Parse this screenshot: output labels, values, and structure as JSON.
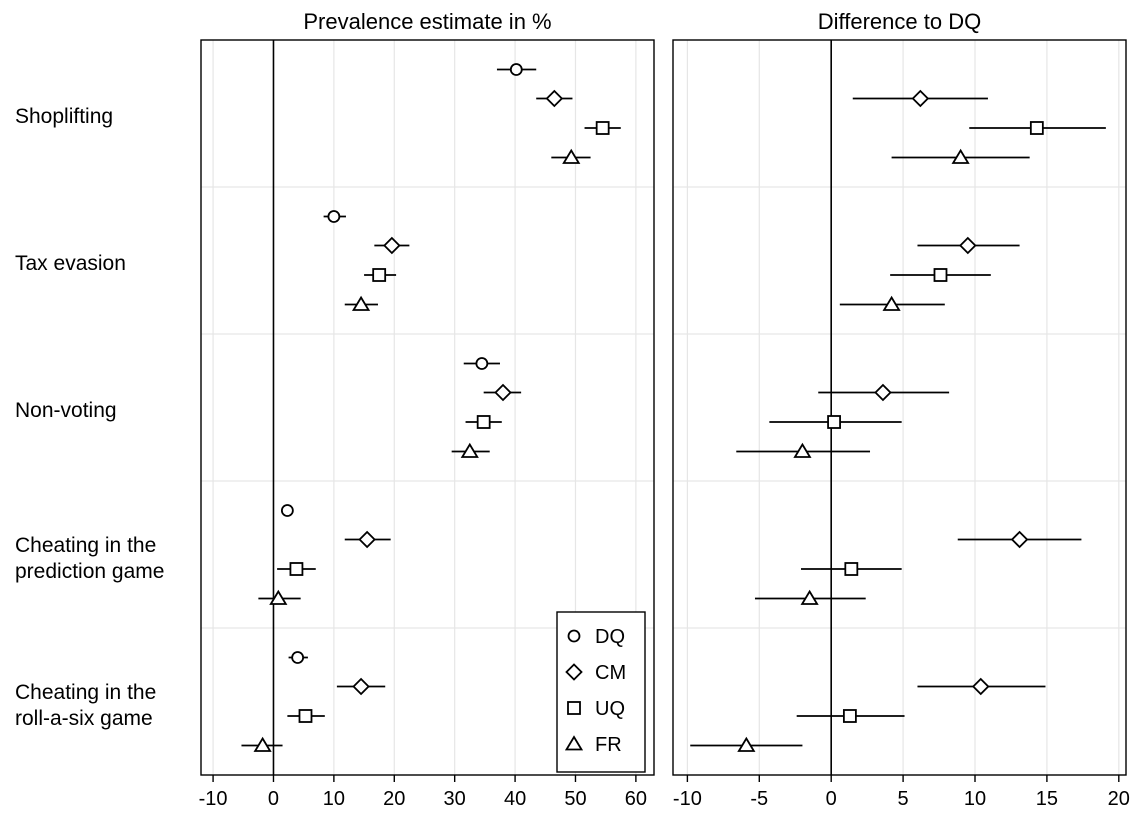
{
  "chart_data": [
    {
      "type": "scatter",
      "title": "Prevalence estimate in %",
      "xlabel": "",
      "ylabel": "",
      "xlim": [
        -12,
        63
      ],
      "xticks": [
        -10,
        0,
        10,
        20,
        30,
        40,
        50,
        60
      ],
      "grid": true,
      "categories": [
        "Shoplifting",
        "Tax evasion",
        "Non-voting",
        "Cheating in the prediction game",
        "Cheating in the roll-a-six game"
      ],
      "category_lines": [
        [
          "Shoplifting"
        ],
        [
          "Tax evasion"
        ],
        [
          "Non-voting"
        ],
        [
          "Cheating in the",
          "prediction game"
        ],
        [
          "Cheating in the",
          "roll-a-six game"
        ]
      ],
      "series": [
        {
          "name": "DQ",
          "marker": "circle",
          "values": [
            40.2,
            10.0,
            34.5,
            2.3,
            4.0
          ],
          "ci_low": [
            37.0,
            8.3,
            31.5,
            1.5,
            2.5
          ],
          "ci_high": [
            43.5,
            12.0,
            37.5,
            3.3,
            5.7
          ]
        },
        {
          "name": "CM",
          "marker": "diamond",
          "values": [
            46.5,
            19.6,
            38.0,
            15.5,
            14.5
          ],
          "ci_low": [
            43.5,
            16.7,
            34.8,
            11.8,
            10.5
          ],
          "ci_high": [
            49.5,
            22.5,
            41.0,
            19.4,
            18.5
          ]
        },
        {
          "name": "UQ",
          "marker": "square",
          "values": [
            54.5,
            17.5,
            34.8,
            3.8,
            5.3
          ],
          "ci_low": [
            51.5,
            15.0,
            31.8,
            0.6,
            2.3
          ],
          "ci_high": [
            57.5,
            20.3,
            37.8,
            7.0,
            8.5
          ]
        },
        {
          "name": "FR",
          "marker": "triangle",
          "values": [
            49.3,
            14.5,
            32.5,
            0.8,
            -1.8
          ],
          "ci_low": [
            46.0,
            11.8,
            29.5,
            -2.5,
            -5.3
          ],
          "ci_high": [
            52.5,
            17.3,
            35.8,
            4.5,
            1.5
          ]
        }
      ]
    },
    {
      "type": "scatter",
      "title": "Difference to DQ",
      "xlabel": "",
      "ylabel": "",
      "xlim": [
        -11,
        20.5
      ],
      "xticks": [
        -10,
        -5,
        0,
        5,
        10,
        15,
        20
      ],
      "grid": true,
      "series": [
        {
          "name": "CM",
          "marker": "diamond",
          "values": [
            6.2,
            9.5,
            3.6,
            13.1,
            10.4
          ],
          "ci_low": [
            1.5,
            6.0,
            -0.9,
            8.8,
            6.0
          ],
          "ci_high": [
            10.9,
            13.1,
            8.2,
            17.4,
            14.9
          ]
        },
        {
          "name": "UQ",
          "marker": "square",
          "values": [
            14.3,
            7.6,
            0.2,
            1.4,
            1.3
          ],
          "ci_low": [
            9.6,
            4.1,
            -4.3,
            -2.1,
            -2.4
          ],
          "ci_high": [
            19.1,
            11.1,
            4.9,
            4.9,
            5.1
          ]
        },
        {
          "name": "FR",
          "marker": "triangle",
          "values": [
            9.0,
            4.2,
            -2.0,
            -1.5,
            -5.9
          ],
          "ci_low": [
            4.2,
            0.6,
            -6.6,
            -5.3,
            -9.8
          ],
          "ci_high": [
            13.8,
            7.9,
            2.7,
            2.4,
            -2.0
          ]
        }
      ]
    }
  ],
  "legend": {
    "placement": "bottom-right of left panel",
    "entries": [
      {
        "label": "DQ",
        "marker": "circle"
      },
      {
        "label": "CM",
        "marker": "diamond"
      },
      {
        "label": "UQ",
        "marker": "square"
      },
      {
        "label": "FR",
        "marker": "triangle"
      }
    ]
  },
  "colors": {
    "marker_stroke": "#000000",
    "marker_fill": "#ffffff",
    "grid": "#e6e6e6",
    "axis": "#000000",
    "background": "#ffffff"
  }
}
